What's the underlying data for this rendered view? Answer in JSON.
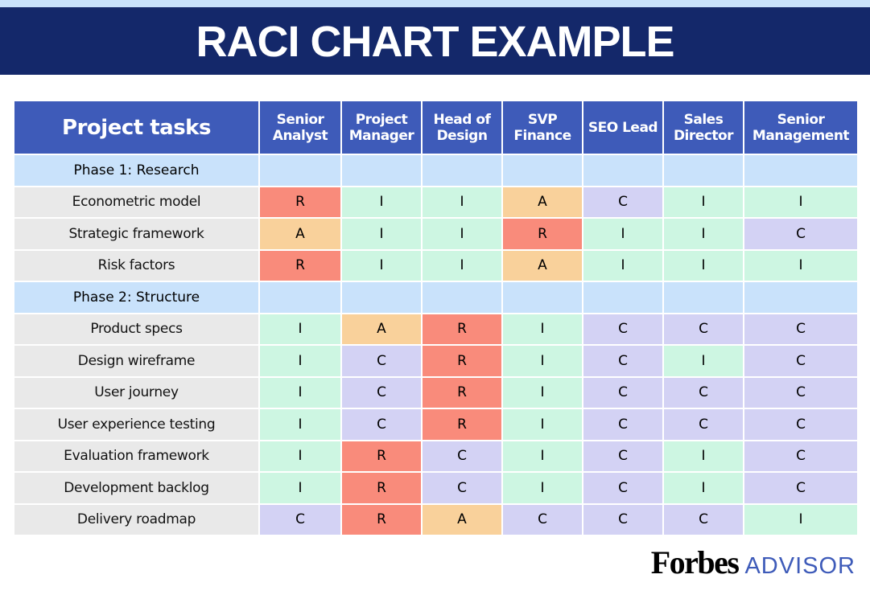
{
  "header": {
    "title": "RACI CHART EXAMPLE"
  },
  "table": {
    "columns": [
      "Project tasks",
      "Senior Analyst",
      "Project Manager",
      "Head of Design",
      "SVP Finance",
      "SEO Lead",
      "Sales Director",
      "Senior Management"
    ],
    "rows": [
      {
        "phase": "Phase 1: Research"
      },
      {
        "task": "Econometric model",
        "cells": [
          "R",
          "I",
          "I",
          "A",
          "C",
          "I",
          "I"
        ]
      },
      {
        "task": "Strategic framework",
        "cells": [
          "A",
          "I",
          "I",
          "R",
          "I",
          "I",
          "C"
        ]
      },
      {
        "task": "Risk factors",
        "cells": [
          "R",
          "I",
          "I",
          "A",
          "I",
          "I",
          "I"
        ]
      },
      {
        "phase": "Phase 2: Structure"
      },
      {
        "task": "Product specs",
        "cells": [
          "I",
          "A",
          "R",
          "I",
          "C",
          "C",
          "C"
        ]
      },
      {
        "task": "Design wireframe",
        "cells": [
          "I",
          "C",
          "R",
          "I",
          "C",
          "I",
          "C"
        ]
      },
      {
        "task": "User journey",
        "cells": [
          "I",
          "C",
          "R",
          "I",
          "C",
          "C",
          "C"
        ]
      },
      {
        "task": "User experience testing",
        "cells": [
          "I",
          "C",
          "R",
          "I",
          "C",
          "C",
          "C"
        ]
      },
      {
        "task": "Evaluation framework",
        "cells": [
          "I",
          "R",
          "C",
          "I",
          "C",
          "I",
          "C"
        ]
      },
      {
        "task": "Development backlog",
        "cells": [
          "I",
          "R",
          "C",
          "I",
          "C",
          "I",
          "C"
        ]
      },
      {
        "task": "Delivery roadmap",
        "cells": [
          "C",
          "R",
          "A",
          "C",
          "C",
          "C",
          "I"
        ]
      }
    ],
    "colors": {
      "R": "#f98b7b",
      "A": "#f9d19b",
      "C": "#d3d2f4",
      "I": "#cdf6e2"
    }
  },
  "footer": {
    "brand": "Forbes",
    "product": "ADVISOR"
  }
}
